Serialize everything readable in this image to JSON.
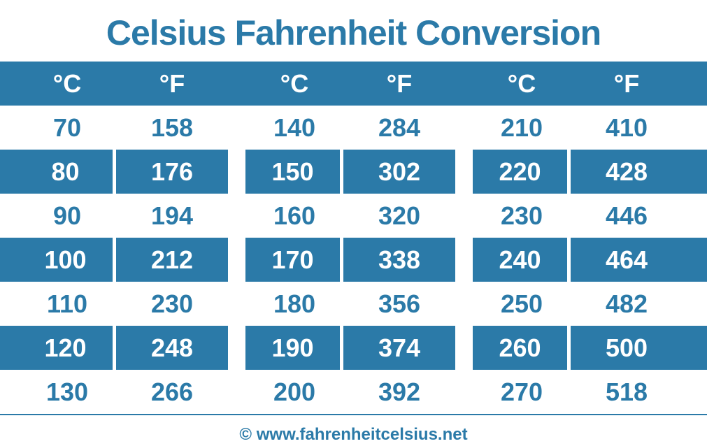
{
  "title": "Celsius Fahrenheit Conversion",
  "title_color": "#2b7aa8",
  "title_fontsize": 50,
  "footer": "© www.fahrenheitcelsius.net",
  "footer_color": "#2b7aa8",
  "footer_fontsize": 24,
  "colors": {
    "primary": "#2b7aa8",
    "white": "#ffffff",
    "line": "#2b7aa8"
  },
  "cell_fontsize": 36,
  "layout": {
    "left_filler": 26,
    "cell_c": 140,
    "cell_f": 160,
    "gap": 25,
    "right_filler_check": 1011
  },
  "headers": [
    "°C",
    "°F",
    "°C",
    "°F",
    "°C",
    "°F"
  ],
  "rows": [
    {
      "style": "white",
      "cells": [
        "70",
        "158",
        "140",
        "284",
        "210",
        "410"
      ]
    },
    {
      "style": "blue",
      "cells": [
        "80",
        "176",
        "150",
        "302",
        "220",
        "428"
      ]
    },
    {
      "style": "white",
      "cells": [
        "90",
        "194",
        "160",
        "320",
        "230",
        "446"
      ]
    },
    {
      "style": "blue",
      "cells": [
        "100",
        "212",
        "170",
        "338",
        "240",
        "464"
      ]
    },
    {
      "style": "white",
      "cells": [
        "110",
        "230",
        "180",
        "356",
        "250",
        "482"
      ]
    },
    {
      "style": "blue",
      "cells": [
        "120",
        "248",
        "190",
        "374",
        "260",
        "500"
      ]
    },
    {
      "style": "white",
      "cells": [
        "130",
        "266",
        "200",
        "392",
        "270",
        "518"
      ]
    }
  ]
}
